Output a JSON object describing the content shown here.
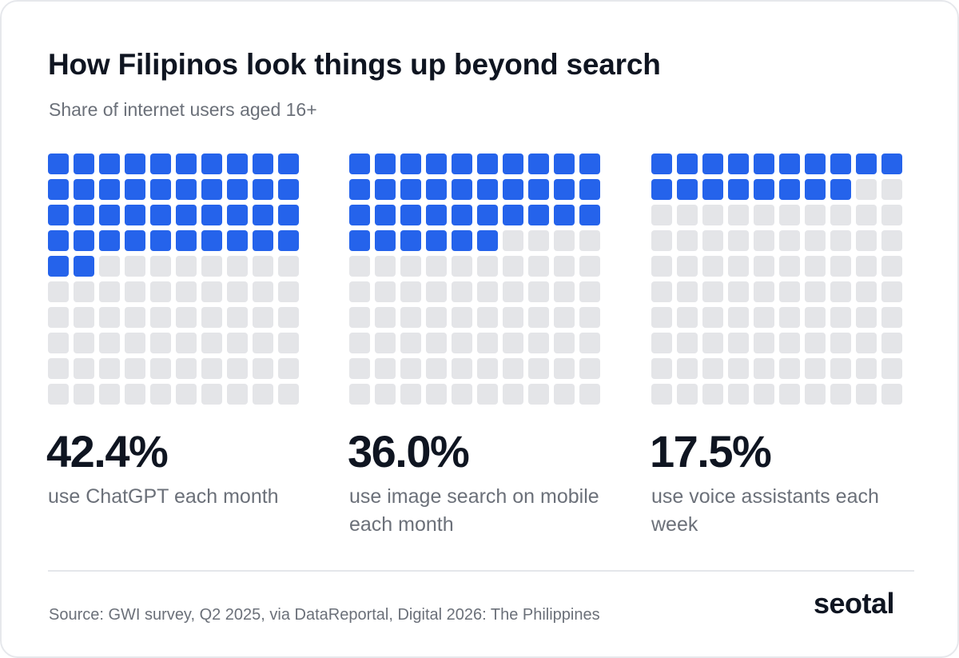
{
  "title": "How Filipinos look things up beyond search",
  "subtitle": "Share of internet users aged 16+",
  "chart_data": {
    "type": "waffle",
    "grid": {
      "rows": 10,
      "columns": 10
    },
    "filled_color": "#2563eb",
    "empty_color": "#e4e5e8",
    "panels": [
      {
        "value": 42.4,
        "label": "42.4%",
        "description": "use ChatGPT each month",
        "filled_cells": 42
      },
      {
        "value": 36.0,
        "label": "36.0%",
        "description": "use image search on mobile each month",
        "filled_cells": 36
      },
      {
        "value": 17.5,
        "label": "17.5%",
        "description": "use voice assistants each week",
        "filled_cells": 18
      }
    ]
  },
  "footer": {
    "source": "Source: GWI survey, Q2 2025, via DataReportal, Digital 2026: The Philippines",
    "logo_text": "seotal",
    "logo_accent_color": "#2563eb"
  }
}
